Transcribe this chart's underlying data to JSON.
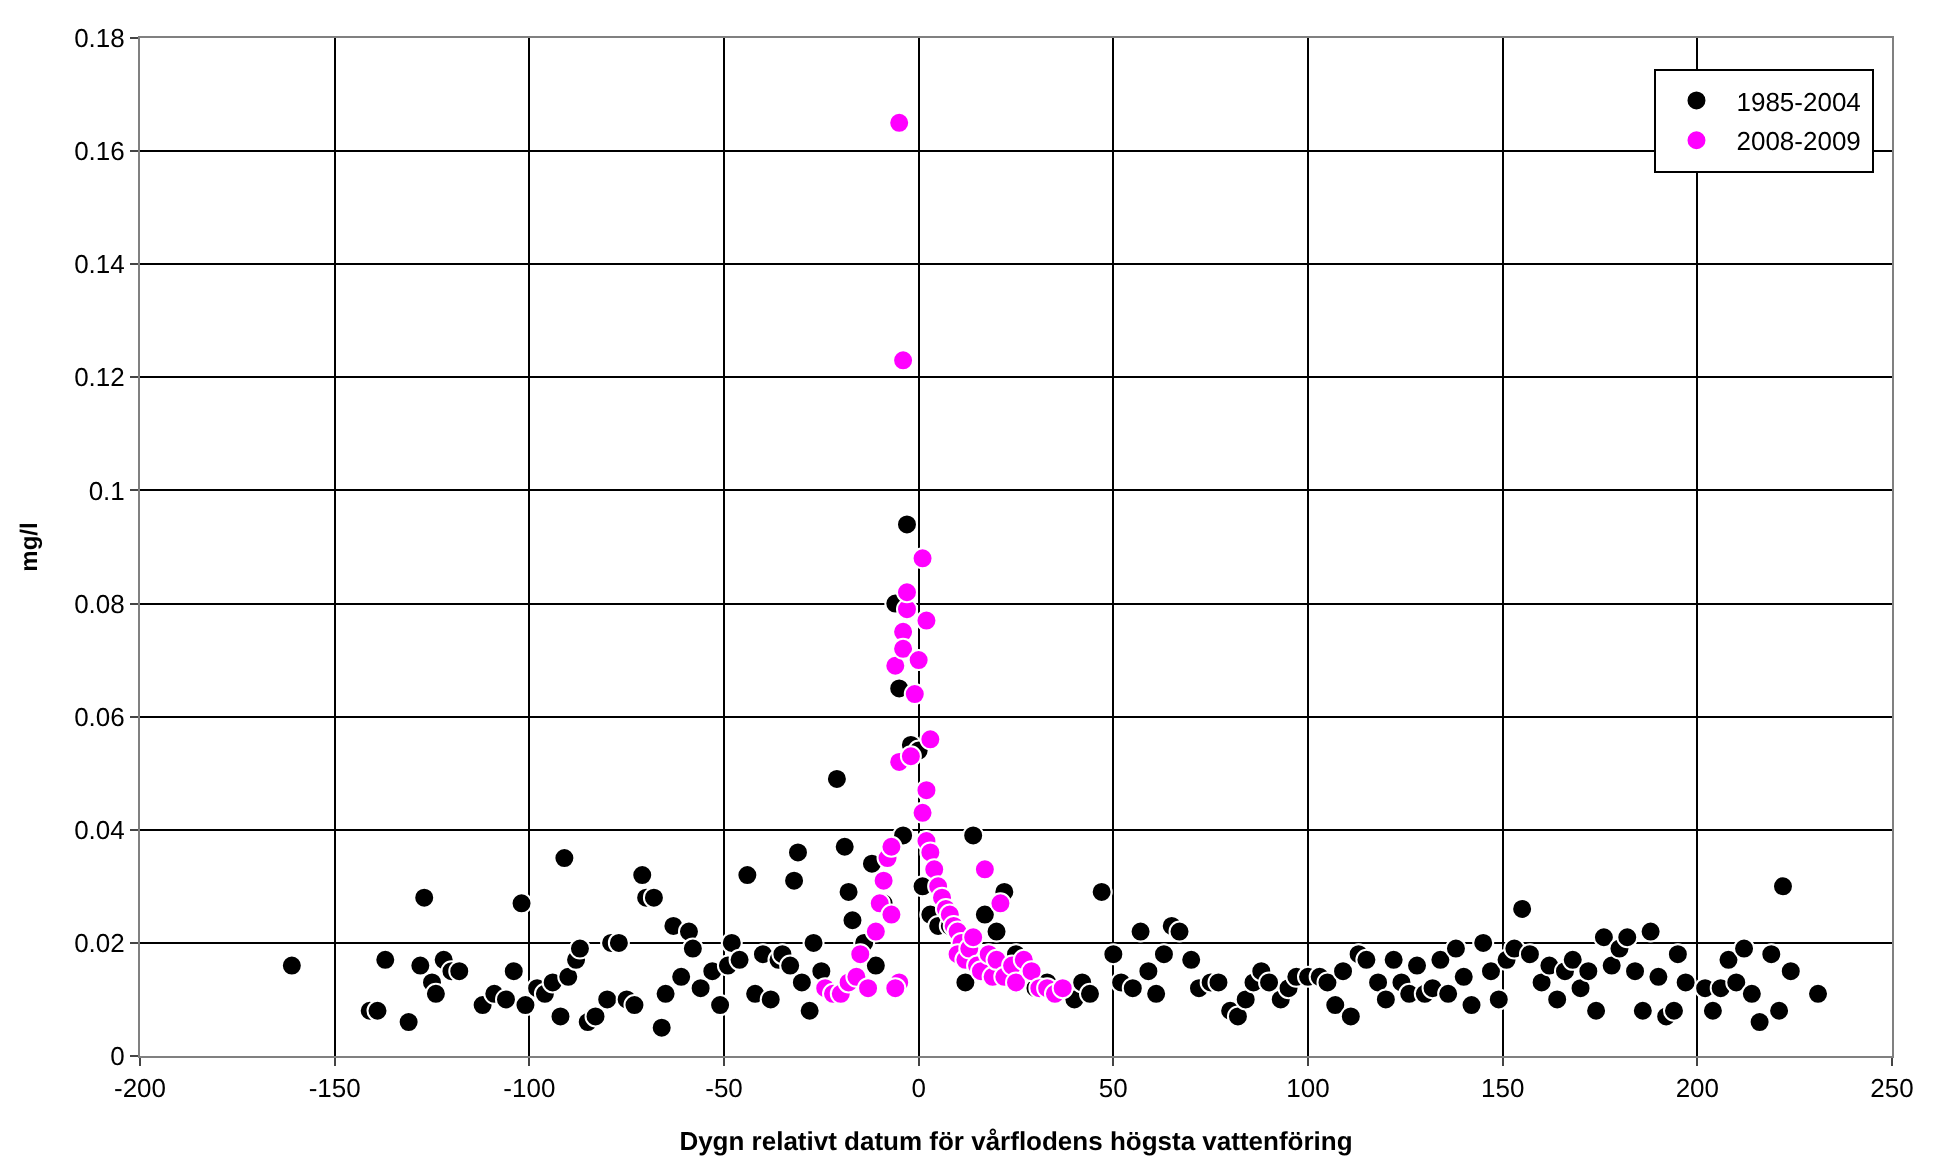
{
  "chart_data": {
    "type": "scatter",
    "xlabel": "Dygn relativt datum för vårflodens högsta vattenföring",
    "ylabel": "mg/l",
    "xlim": [
      -200,
      250
    ],
    "xticks": [
      -200,
      -150,
      -100,
      -50,
      0,
      50,
      100,
      150,
      200,
      250
    ],
    "ylim": [
      0,
      0.18
    ],
    "yticks": [
      0,
      0.02,
      0.04,
      0.06,
      0.08,
      0.1,
      0.12,
      0.14,
      0.16,
      0.18
    ],
    "grid": true,
    "legend": "top right",
    "marker": "circle",
    "series": [
      {
        "name": "1985-2004",
        "color": "#000000",
        "x": [
          -161,
          -141,
          -139,
          -137,
          -131,
          -128,
          -127,
          -125,
          -124,
          -122,
          -120,
          -118,
          -112,
          -109,
          -106,
          -104,
          -102,
          -101,
          -98,
          -96,
          -94,
          -92,
          -91,
          -90,
          -88,
          -87,
          -85,
          -83,
          -80,
          -79,
          -77,
          -75,
          -73,
          -71,
          -70,
          -68,
          -66,
          -65,
          -63,
          -61,
          -59,
          -58,
          -56,
          -53,
          -51,
          -49,
          -48,
          -46,
          -44,
          -42,
          -40,
          -38,
          -36,
          -35,
          -33,
          -31,
          -32,
          -30,
          -28,
          -27,
          -25,
          -21,
          -19,
          -18,
          -17,
          -14,
          -12,
          -11,
          -9,
          -7,
          -6,
          -5,
          -4,
          -3,
          -2,
          0,
          1,
          3,
          5,
          8,
          10,
          12,
          14,
          15,
          17,
          20,
          22,
          25,
          28,
          30,
          33,
          36,
          40,
          42,
          44,
          47,
          50,
          52,
          55,
          57,
          59,
          61,
          63,
          65,
          67,
          70,
          72,
          75,
          77,
          80,
          82,
          84,
          86,
          88,
          90,
          93,
          95,
          97,
          100,
          103,
          105,
          107,
          109,
          111,
          113,
          115,
          118,
          120,
          122,
          124,
          126,
          128,
          130,
          132,
          134,
          136,
          138,
          140,
          142,
          145,
          147,
          149,
          151,
          153,
          155,
          157,
          160,
          162,
          164,
          166,
          168,
          170,
          172,
          174,
          176,
          178,
          180,
          182,
          184,
          186,
          188,
          190,
          192,
          194,
          195,
          197,
          202,
          204,
          206,
          208,
          210,
          212,
          214,
          216,
          219,
          221,
          222,
          224,
          231
        ],
        "values": [
          0.016,
          0.008,
          0.008,
          0.017,
          0.006,
          0.016,
          0.028,
          0.013,
          0.011,
          0.017,
          0.015,
          0.015,
          0.009,
          0.011,
          0.01,
          0.015,
          0.027,
          0.009,
          0.012,
          0.011,
          0.013,
          0.007,
          0.035,
          0.014,
          0.017,
          0.019,
          0.006,
          0.007,
          0.01,
          0.02,
          0.02,
          0.01,
          0.009,
          0.032,
          0.028,
          0.028,
          0.005,
          0.011,
          0.023,
          0.014,
          0.022,
          0.019,
          0.012,
          0.015,
          0.009,
          0.016,
          0.02,
          0.017,
          0.032,
          0.011,
          0.018,
          0.01,
          0.017,
          0.018,
          0.016,
          0.036,
          0.031,
          0.013,
          0.008,
          0.02,
          0.015,
          0.049,
          0.037,
          0.029,
          0.024,
          0.02,
          0.034,
          0.016,
          0.027,
          null,
          0.08,
          0.065,
          0.039,
          0.094,
          0.055,
          0.054,
          0.03,
          0.025,
          0.023,
          0.023,
          null,
          0.013,
          0.039,
          null,
          0.025,
          0.022,
          0.029,
          0.018,
          null,
          0.012,
          0.013,
          null,
          0.01,
          0.013,
          0.011,
          0.029,
          0.018,
          0.013,
          0.012,
          0.022,
          0.015,
          0.011,
          0.018,
          0.023,
          0.022,
          0.017,
          0.012,
          0.013,
          0.013,
          0.008,
          0.007,
          0.01,
          0.013,
          0.015,
          0.013,
          0.01,
          0.012,
          0.014,
          0.014,
          0.014,
          0.013,
          0.009,
          0.015,
          0.007,
          0.018,
          0.017,
          0.013,
          0.01,
          0.017,
          0.013,
          0.011,
          0.016,
          0.011,
          0.012,
          0.017,
          0.011,
          0.019,
          0.014,
          0.009,
          0.02,
          0.015,
          0.01,
          0.017,
          0.019,
          0.026,
          0.018,
          0.013,
          0.016,
          0.01,
          0.015,
          0.017,
          0.012,
          0.015,
          0.008,
          0.021,
          0.016,
          0.019,
          0.021,
          0.015,
          0.008,
          0.022,
          0.014,
          0.007,
          0.008,
          0.018,
          0.013,
          0.012,
          0.008,
          0.012,
          0.017,
          0.013,
          0.019,
          0.011,
          0.006,
          0.018,
          0.008,
          0.03,
          0.015,
          0.011
        ]
      },
      {
        "name": "2008-2009",
        "color": "#ff00ff",
        "x": [
          -5,
          -4,
          -24,
          -22,
          -20,
          -18,
          -16,
          -15,
          -13,
          -11,
          -10,
          -9,
          -8,
          -7,
          -6,
          -7,
          -5,
          -6,
          -5,
          -4,
          -3,
          -3,
          -2,
          -4,
          -1,
          0,
          1,
          2,
          2,
          3,
          1,
          2,
          3,
          4,
          5,
          6,
          7,
          8,
          9,
          10,
          11,
          10,
          12,
          13,
          14,
          15,
          16,
          17,
          18,
          19,
          20,
          21,
          22,
          24,
          25,
          27,
          29,
          31,
          33,
          35,
          37
        ],
        "values": [
          0.165,
          0.123,
          0.012,
          0.011,
          0.011,
          0.013,
          0.014,
          0.018,
          0.012,
          0.022,
          0.027,
          0.031,
          0.035,
          0.025,
          0.069,
          0.037,
          0.013,
          0.012,
          0.052,
          0.075,
          0.079,
          0.082,
          0.053,
          0.072,
          0.064,
          0.07,
          0.088,
          0.077,
          0.047,
          0.056,
          0.043,
          0.038,
          0.036,
          0.033,
          0.03,
          0.028,
          0.026,
          0.025,
          0.023,
          0.022,
          0.02,
          0.018,
          0.017,
          0.019,
          0.021,
          0.016,
          0.015,
          0.033,
          0.018,
          0.014,
          0.017,
          0.027,
          0.014,
          0.016,
          0.013,
          0.017,
          0.015,
          0.012,
          0.012,
          0.011,
          0.012
        ]
      }
    ]
  }
}
